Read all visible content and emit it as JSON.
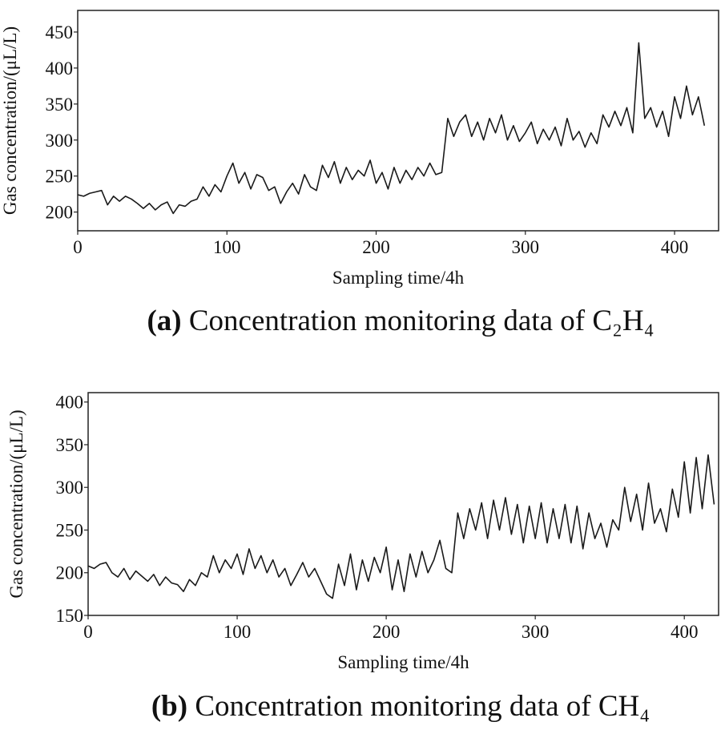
{
  "chart_data": [
    {
      "type": "line",
      "panel_label": "(a)",
      "title": "Concentration monitoring data of C₂H₄",
      "xlabel": "Sampling time/4h",
      "ylabel": "Gas concentration/(μL/L)",
      "color": "#1a1a1a",
      "xlim": [
        0,
        429.5
      ],
      "xticks": [
        0,
        100,
        200,
        300,
        400
      ],
      "ylim": [
        174,
        480
      ],
      "yticks": [
        200,
        250,
        300,
        350,
        400,
        450
      ],
      "x": [
        0,
        4,
        8,
        12,
        16,
        20,
        24,
        28,
        32,
        36,
        40,
        44,
        48,
        52,
        56,
        60,
        64,
        68,
        72,
        76,
        80,
        84,
        88,
        92,
        96,
        100,
        104,
        108,
        112,
        116,
        120,
        124,
        128,
        132,
        136,
        140,
        144,
        148,
        152,
        156,
        160,
        164,
        168,
        172,
        176,
        180,
        184,
        188,
        192,
        196,
        200,
        204,
        208,
        212,
        216,
        220,
        224,
        228,
        232,
        236,
        240,
        244,
        248,
        252,
        256,
        260,
        264,
        268,
        272,
        276,
        280,
        284,
        288,
        292,
        296,
        300,
        304,
        308,
        312,
        316,
        320,
        324,
        328,
        332,
        336,
        340,
        344,
        348,
        352,
        356,
        360,
        364,
        368,
        372,
        376,
        380,
        384,
        388,
        392,
        396,
        400,
        404,
        408,
        412,
        416,
        420
      ],
      "values": [
        224,
        222,
        226,
        228,
        230,
        210,
        222,
        215,
        222,
        218,
        212,
        205,
        212,
        203,
        210,
        214,
        198,
        210,
        208,
        215,
        218,
        235,
        222,
        238,
        228,
        250,
        268,
        240,
        255,
        232,
        252,
        248,
        230,
        235,
        212,
        228,
        240,
        225,
        252,
        235,
        230,
        265,
        248,
        270,
        240,
        262,
        245,
        258,
        250,
        272,
        240,
        255,
        232,
        262,
        240,
        258,
        245,
        262,
        250,
        268,
        252,
        255,
        330,
        305,
        325,
        335,
        305,
        325,
        300,
        330,
        310,
        335,
        300,
        320,
        298,
        310,
        325,
        295,
        315,
        300,
        318,
        292,
        330,
        300,
        312,
        290,
        310,
        295,
        335,
        318,
        340,
        320,
        345,
        310,
        435,
        330,
        345,
        318,
        340,
        305,
        360,
        330,
        375,
        335,
        360,
        320
      ]
    },
    {
      "type": "line",
      "panel_label": "(b)",
      "title": "Concentration monitoring data of CH₄",
      "xlabel": "Sampling time/4h",
      "ylabel": "Gas concentration/(μL/L)",
      "color": "#1a1a1a",
      "xlim": [
        0,
        423
      ],
      "xticks": [
        0,
        100,
        200,
        300,
        400
      ],
      "ylim": [
        150,
        411
      ],
      "yticks": [
        150,
        200,
        250,
        300,
        350,
        400
      ],
      "x": [
        0,
        4,
        8,
        12,
        16,
        20,
        24,
        28,
        32,
        36,
        40,
        44,
        48,
        52,
        56,
        60,
        64,
        68,
        72,
        76,
        80,
        84,
        88,
        92,
        96,
        100,
        104,
        108,
        112,
        116,
        120,
        124,
        128,
        132,
        136,
        140,
        144,
        148,
        152,
        156,
        160,
        164,
        168,
        172,
        176,
        180,
        184,
        188,
        192,
        196,
        200,
        204,
        208,
        212,
        216,
        220,
        224,
        228,
        232,
        236,
        240,
        244,
        248,
        252,
        256,
        260,
        264,
        268,
        272,
        276,
        280,
        284,
        288,
        292,
        296,
        300,
        304,
        308,
        312,
        316,
        320,
        324,
        328,
        332,
        336,
        340,
        344,
        348,
        352,
        356,
        360,
        364,
        368,
        372,
        376,
        380,
        384,
        388,
        392,
        396,
        400,
        404,
        408,
        412,
        416,
        420
      ],
      "values": [
        208,
        205,
        210,
        212,
        200,
        195,
        205,
        192,
        202,
        196,
        190,
        198,
        185,
        195,
        188,
        186,
        178,
        192,
        185,
        200,
        195,
        220,
        200,
        215,
        205,
        222,
        198,
        228,
        205,
        220,
        200,
        215,
        195,
        205,
        185,
        198,
        212,
        195,
        205,
        190,
        175,
        170,
        210,
        185,
        222,
        180,
        215,
        190,
        218,
        200,
        230,
        180,
        215,
        178,
        222,
        195,
        225,
        200,
        215,
        238,
        205,
        200,
        270,
        240,
        275,
        250,
        282,
        240,
        285,
        250,
        288,
        245,
        280,
        235,
        278,
        240,
        282,
        235,
        275,
        240,
        280,
        235,
        278,
        228,
        270,
        240,
        258,
        230,
        262,
        250,
        300,
        260,
        292,
        250,
        305,
        258,
        275,
        248,
        298,
        265,
        330,
        270,
        335,
        275,
        338,
        280
      ]
    }
  ]
}
